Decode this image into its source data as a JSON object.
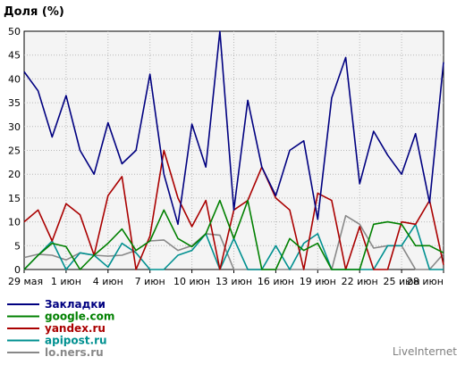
{
  "chart_data": {
    "type": "line",
    "title": "Доля (%)",
    "watermark": "LiveInternet",
    "ylim": [
      0,
      50
    ],
    "yticks": [
      0,
      5,
      10,
      15,
      20,
      25,
      30,
      35,
      40,
      45,
      50
    ],
    "grid": true,
    "legend_position": "bottom-left",
    "x_tick_labels": [
      {
        "index": 0,
        "label": "29 мая"
      },
      {
        "index": 3,
        "label": "1 июн"
      },
      {
        "index": 6,
        "label": "4 июн"
      },
      {
        "index": 9,
        "label": "7 июн"
      },
      {
        "index": 12,
        "label": "10 июн"
      },
      {
        "index": 15,
        "label": "13 июн"
      },
      {
        "index": 18,
        "label": "16 июн"
      },
      {
        "index": 21,
        "label": "19 июн"
      },
      {
        "index": 24,
        "label": "22 июн"
      },
      {
        "index": 27,
        "label": "25 июн"
      },
      {
        "index": 30,
        "label": "28 июн"
      }
    ],
    "points_count": 31,
    "series": [
      {
        "name": "Закладки",
        "color": "#000080",
        "values": [
          41.5,
          37.5,
          27.8,
          36.5,
          25,
          20,
          30.8,
          22.2,
          25,
          41,
          20,
          9.5,
          30.5,
          21.5,
          50,
          12.5,
          35.5,
          21.5,
          15.5,
          25,
          27,
          10.5,
          36,
          44.5,
          18,
          29,
          24,
          20,
          28.5,
          14,
          43.5
        ]
      },
      {
        "name": "google.com",
        "color": "#008000",
        "values": [
          0,
          3,
          5.5,
          4.8,
          0,
          3,
          5.5,
          8.5,
          4,
          6,
          12.5,
          6.5,
          4.8,
          7.5,
          14.5,
          6.5,
          14.5,
          0,
          0,
          6.5,
          4,
          5.5,
          0,
          0,
          0,
          9.5,
          10,
          9.5,
          5,
          5,
          3.5
        ]
      },
      {
        "name": "yandex.ru",
        "color": "#aa0000",
        "values": [
          10,
          12.5,
          6,
          13.8,
          11.5,
          3,
          15.5,
          19.5,
          0,
          7,
          25,
          15,
          9,
          14.5,
          0,
          12.5,
          14.5,
          21.5,
          15,
          12.5,
          0,
          16,
          14.5,
          0,
          9,
          0,
          0,
          10,
          9.5,
          14.5,
          1
        ]
      },
      {
        "name": "apipost.ru",
        "color": "#009090",
        "values": [
          0,
          3,
          6,
          0,
          3.5,
          3,
          0.5,
          5.5,
          3.5,
          0,
          0,
          3,
          4,
          7.5,
          0,
          6.5,
          0,
          0,
          5,
          0,
          5.5,
          7.5,
          0,
          0,
          0,
          0,
          5,
          5,
          9.5,
          0,
          0
        ]
      },
      {
        "name": "lo.ners.ru",
        "color": "#888888",
        "values": [
          2.5,
          3.2,
          3,
          2,
          3.5,
          3,
          2.8,
          3,
          4,
          6,
          6.2,
          4,
          5,
          7.5,
          7.2,
          0,
          0,
          0,
          0,
          0,
          0,
          0,
          0,
          11.3,
          9.5,
          4.5,
          5,
          5,
          0,
          0,
          3.3
        ]
      }
    ]
  }
}
